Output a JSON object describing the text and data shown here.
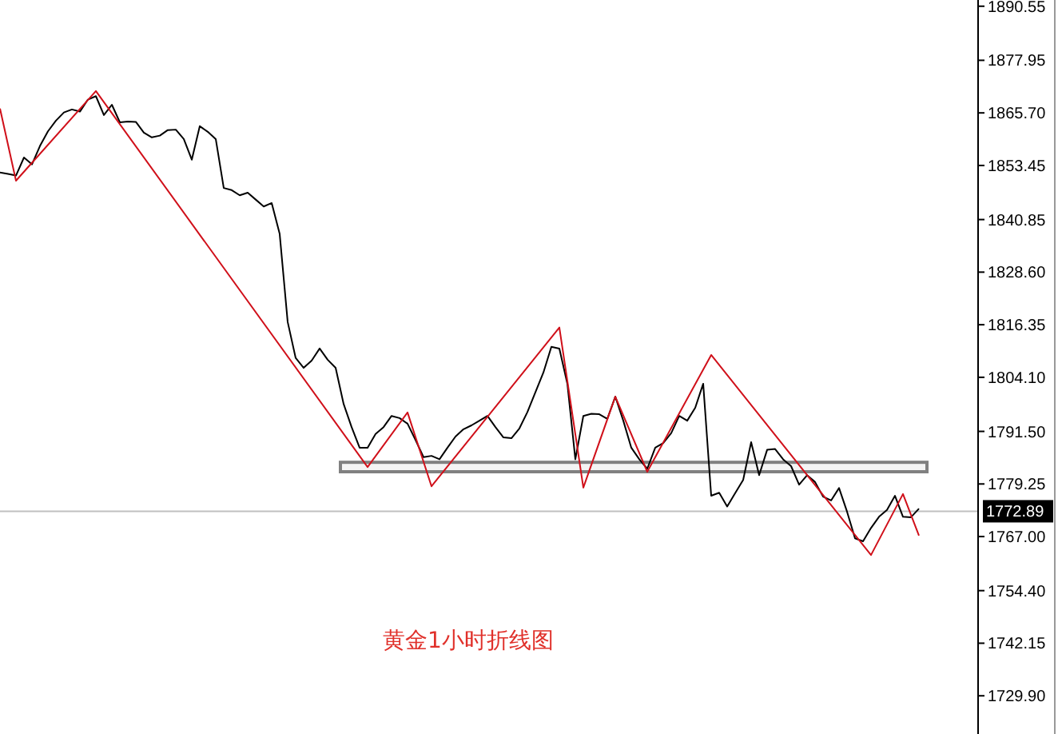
{
  "chart_data": {
    "type": "line",
    "annotations": [
      "黄金1小时折线图"
    ],
    "categories": [
      null,
      null,
      null,
      null,
      null,
      null,
      null,
      null,
      null,
      null,
      null,
      null,
      null,
      null,
      null,
      null,
      null,
      null,
      null,
      null,
      null,
      null,
      null,
      null,
      null,
      null,
      null,
      null,
      null,
      null,
      null,
      null,
      null,
      null,
      null,
      null,
      null,
      null,
      null,
      null,
      null,
      null,
      null,
      null,
      null,
      null,
      null,
      null,
      null,
      null,
      null,
      null,
      null,
      null,
      null,
      null,
      null,
      null,
      null,
      null,
      null,
      null,
      null,
      null,
      null,
      null,
      null,
      null,
      null,
      null,
      null,
      null,
      null,
      null,
      null,
      null,
      null,
      null,
      null,
      null,
      null,
      null,
      null,
      null,
      null,
      null,
      null,
      null,
      null,
      null,
      null,
      null,
      null,
      null,
      null,
      null,
      null,
      null,
      null,
      null,
      null,
      null,
      null,
      null,
      null,
      null,
      null,
      null,
      null,
      null,
      null,
      null,
      null,
      null,
      null,
      null,
      null,
      null,
      null,
      null,
      null,
      null,
      null
    ],
    "ylim": [
      1721,
      1892
    ],
    "tick_labels": "y",
    "marker": "none",
    "line_style": "solid",
    "yticks": [
      {
        "value": 1890.55,
        "label": "1890.55"
      },
      {
        "value": 1877.95,
        "label": "1877.95"
      },
      {
        "value": 1865.7,
        "label": "1865.70"
      },
      {
        "value": 1853.45,
        "label": "1853.45"
      },
      {
        "value": 1840.85,
        "label": "1840.85"
      },
      {
        "value": 1828.6,
        "label": "1828.60"
      },
      {
        "value": 1816.35,
        "label": "1816.35"
      },
      {
        "value": 1804.1,
        "label": "1804.10"
      },
      {
        "value": 1791.5,
        "label": "1791.50"
      },
      {
        "value": 1779.25,
        "label": "1779.25"
      },
      {
        "value": 1767,
        "label": "1767.00"
      },
      {
        "value": 1754.4,
        "label": "1754.40"
      },
      {
        "value": 1742.15,
        "label": "1742.15"
      },
      {
        "value": 1729.9,
        "label": "1729.90"
      }
    ],
    "ref_lines": [
      {
        "axis": "y",
        "value": 1772.89,
        "label": "1772.89",
        "color": "#c0c0c0"
      }
    ],
    "bands": [
      {
        "axis": "y",
        "from": 1782.1,
        "to": 1784.3,
        "color": "#808080"
      }
    ],
    "series": [
      {
        "color": "#000000",
        "values": [
          1851.8,
          1851.5,
          1851.1,
          1855.3,
          1853.7,
          1858.0,
          1861.4,
          1863.9,
          1865.8,
          1866.5,
          1866.0,
          1868.8,
          1869.6,
          1865.2,
          1867.6,
          1863.5,
          1863.7,
          1863.6,
          1861.1,
          1860.0,
          1860.4,
          1861.7,
          1861.8,
          1859.6,
          1854.8,
          1862.6,
          1861.3,
          1859.6,
          1848.2,
          1847.7,
          1846.5,
          1847.1,
          1845.5,
          1843.9,
          1844.7,
          1837.5,
          1817.0,
          1808.6,
          1806.3,
          1808.0,
          1810.8,
          1808.2,
          1806.3,
          1797.9,
          1792.5,
          1787.7,
          1787.7,
          1790.9,
          1792.5,
          1795.1,
          1794.6,
          1793.3,
          1789.5,
          1785.5,
          1785.8,
          1785.0,
          1787.7,
          1790.3,
          1792.0,
          1792.9,
          1794.0,
          1795.1,
          1792.5,
          1790.1,
          1789.9,
          1792.2,
          1796.0,
          1800.6,
          1805.2,
          1811.2,
          1810.8,
          1802.6,
          1785.0,
          1795.1,
          1795.6,
          1795.5,
          1794.4,
          1799.6,
          1794.0,
          1787.7,
          1785.0,
          1782.8,
          1787.7,
          1788.8,
          1791.1,
          1795.1,
          1794.0,
          1797.0,
          1802.6,
          1776.5,
          1777.2,
          1774.0,
          1777.1,
          1780.2,
          1789.0,
          1781.3,
          1787.2,
          1787.4,
          1785.0,
          1783.4,
          1779.1,
          1781.3,
          1779.7,
          1776.3,
          1775.4,
          1778.3,
          1772.8,
          1766.6,
          1765.9,
          1769.0,
          1771.6,
          1773.2,
          1776.5,
          1771.6,
          1771.5,
          1773.5,
          null,
          null,
          null,
          null,
          null,
          null,
          null
        ]
      },
      {
        "color": "#d0101a",
        "values": [
          1866.7,
          null,
          1849.9,
          null,
          null,
          null,
          null,
          null,
          null,
          null,
          null,
          null,
          1870.8,
          null,
          null,
          null,
          null,
          null,
          null,
          null,
          null,
          null,
          null,
          null,
          null,
          null,
          null,
          null,
          null,
          null,
          null,
          null,
          null,
          null,
          null,
          null,
          null,
          null,
          null,
          null,
          null,
          null,
          null,
          null,
          null,
          null,
          1783.2,
          null,
          null,
          null,
          null,
          1795.9,
          null,
          null,
          1778.7,
          null,
          null,
          null,
          null,
          null,
          null,
          null,
          null,
          null,
          null,
          null,
          null,
          null,
          null,
          null,
          1815.7,
          null,
          null,
          1778.4,
          null,
          null,
          null,
          1799.6,
          null,
          null,
          null,
          1782.1,
          null,
          null,
          null,
          null,
          null,
          null,
          null,
          1809.3,
          null,
          null,
          null,
          null,
          null,
          null,
          null,
          null,
          null,
          null,
          null,
          null,
          null,
          null,
          null,
          null,
          null,
          null,
          null,
          1762.7,
          null,
          null,
          null,
          1776.9,
          null,
          1767.2,
          null,
          null,
          null,
          null,
          null,
          null,
          null
        ]
      }
    ]
  }
}
